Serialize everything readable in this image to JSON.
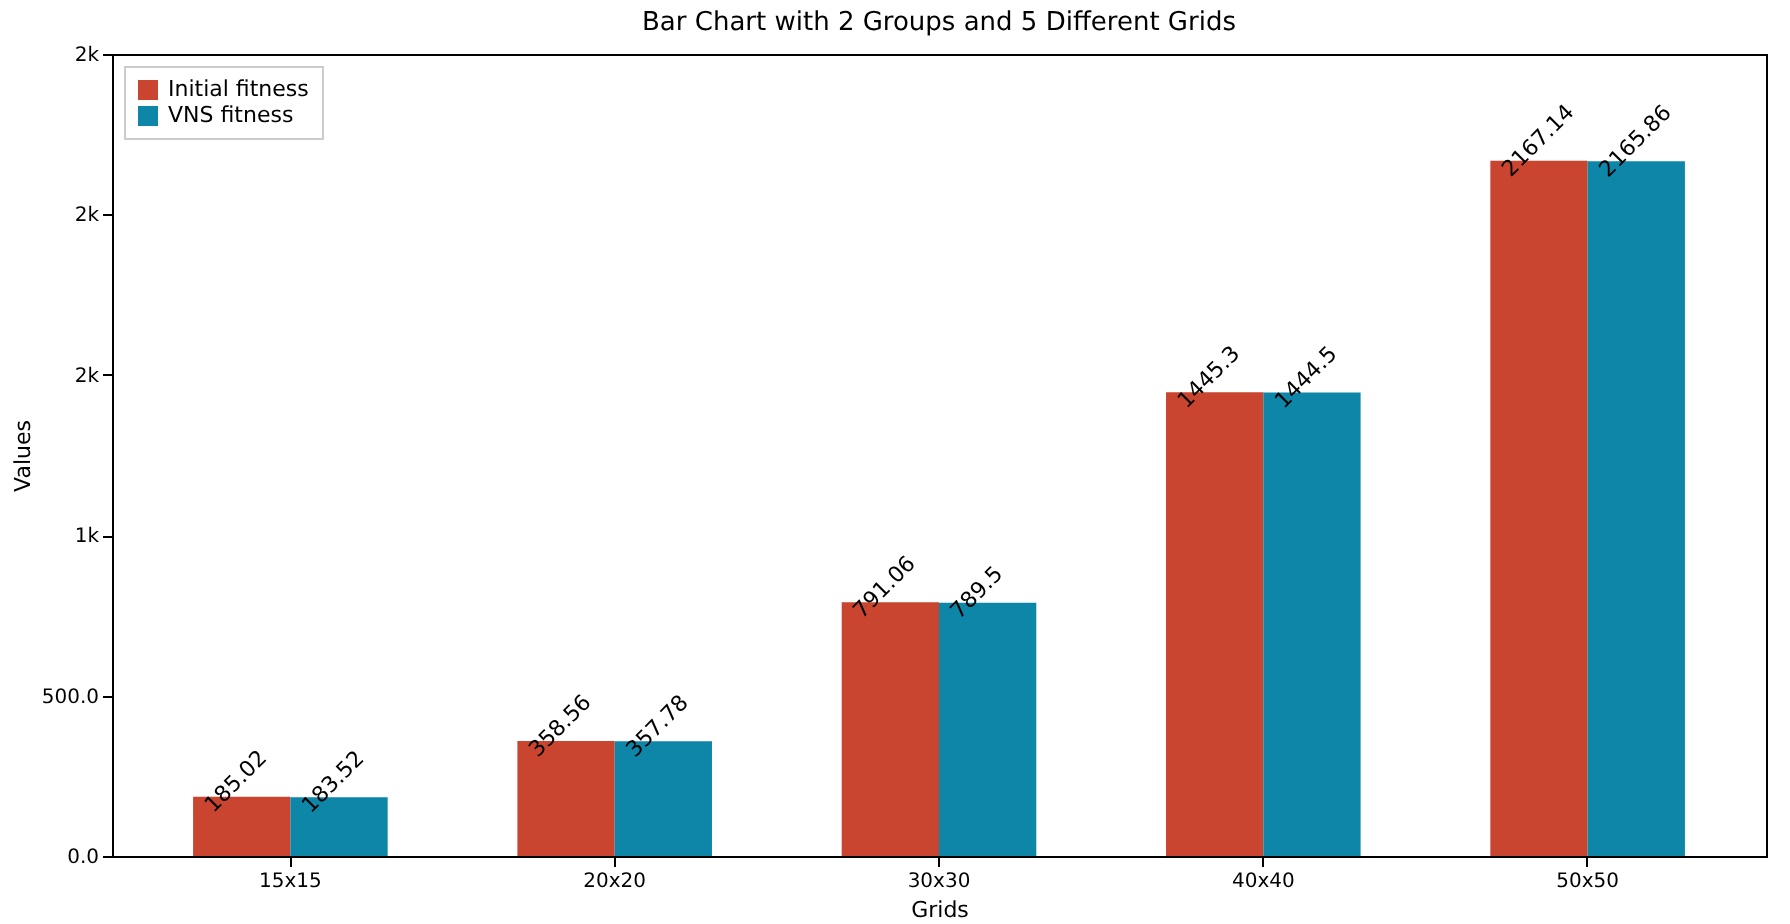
{
  "chart_data": {
    "type": "bar",
    "title": "Bar Chart with 2 Groups and 5 Different Grids",
    "xlabel": "Grids",
    "ylabel": "Values",
    "categories": [
      "15x15",
      "20x20",
      "30x30",
      "40x40",
      "50x50"
    ],
    "series": [
      {
        "name": "Initial fitness",
        "color": "#c9452f",
        "values": [
          185.02,
          358.56,
          791.06,
          1445.3,
          2167.14
        ]
      },
      {
        "name": "VNS fitness",
        "color": "#0e86a8",
        "values": [
          183.52,
          357.78,
          789.5,
          1444.5,
          2165.86
        ]
      }
    ],
    "ylim": [
      0,
      2500
    ],
    "yticks": [
      {
        "value": 0,
        "label": "0.0"
      },
      {
        "value": 500,
        "label": "500.0"
      },
      {
        "value": 1000,
        "label": "1k"
      },
      {
        "value": 1500,
        "label": "2k"
      },
      {
        "value": 2000,
        "label": "2k"
      },
      {
        "value": 2500,
        "label": "2k"
      }
    ],
    "data_labels": true,
    "legend": "top left",
    "grid": false
  }
}
